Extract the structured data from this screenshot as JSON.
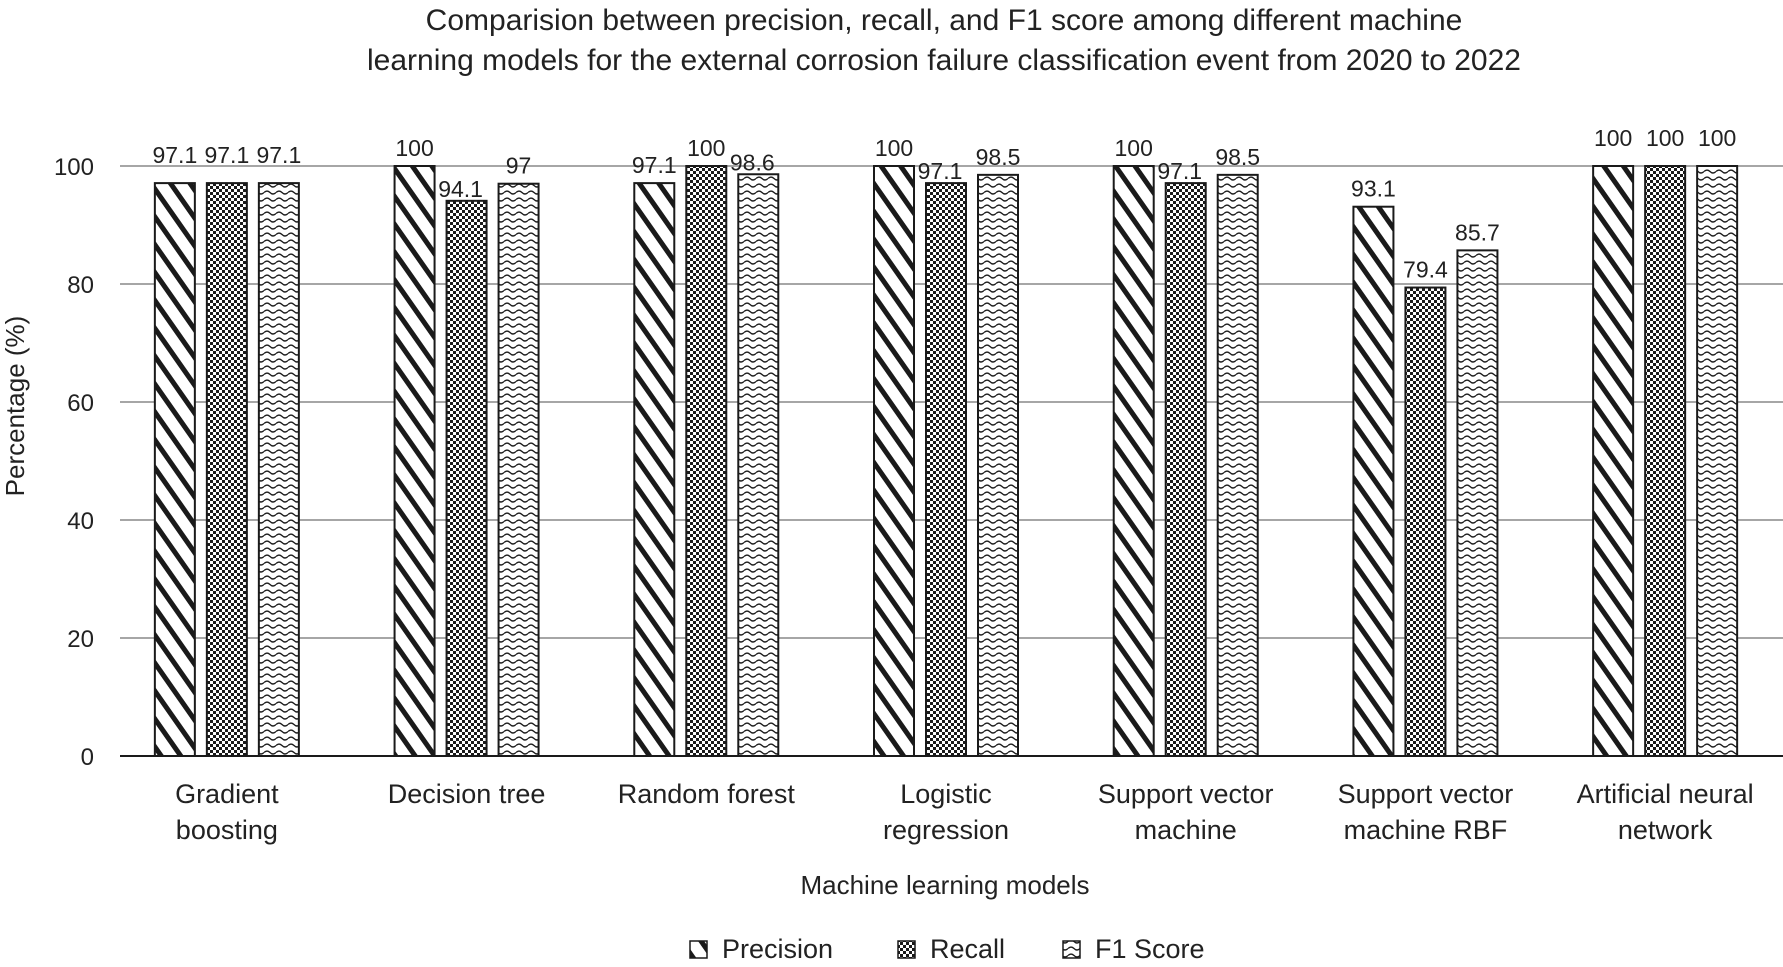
{
  "chart_data": {
    "type": "bar",
    "title_lines": [
      "Comparision between precision, recall, and F1 score among different machine",
      "learning models for the external corrosion failure classification event from 2020 to 2022"
    ],
    "xlabel": "Machine learning models",
    "ylabel": "Percentage (%)",
    "ylim": [
      0,
      100
    ],
    "yticks": [
      0,
      20,
      40,
      60,
      80,
      100
    ],
    "grid": true,
    "legend_position": "bottom",
    "categories": [
      [
        "Gradient",
        "boosting"
      ],
      [
        "Decision tree"
      ],
      [
        "Random forest"
      ],
      [
        "Logistic",
        "regression"
      ],
      [
        "Support vector",
        "machine"
      ],
      [
        "Support vector",
        "machine RBF"
      ],
      [
        "Artificial neural",
        "network"
      ]
    ],
    "series": [
      {
        "name": "Precision",
        "pattern": "diagonal-hatch",
        "values": [
          97.1,
          100,
          97.1,
          100,
          100,
          93.1,
          100
        ]
      },
      {
        "name": "Recall",
        "pattern": "checkerboard",
        "values": [
          97.1,
          94.1,
          100,
          97.1,
          97.1,
          79.4,
          100
        ]
      },
      {
        "name": "F1 Score",
        "pattern": "wave",
        "values": [
          97.1,
          97,
          98.6,
          98.5,
          98.5,
          85.7,
          100
        ]
      }
    ],
    "colors": {
      "bar_stroke": "#1a1a1a",
      "grid": "#a6a6a6",
      "text": "#222222"
    }
  }
}
